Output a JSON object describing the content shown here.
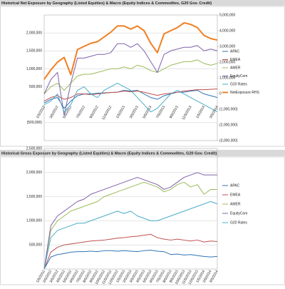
{
  "chart_data": [
    {
      "type": "line",
      "title": "Historical Net Exposure by Geography (Listed Equities) & Macro (Equity Indices & Commodites, G20 Gov. Credit)",
      "categories": [
        "1/5/2012",
        null,
        "3/5/2012",
        null,
        "5/5/2012",
        null,
        "7/5/2012",
        null,
        "9/5/2012",
        null,
        "11/5/2012",
        null,
        "1/5/2013",
        null,
        "3/5/2013",
        null,
        "5/5/2013",
        null,
        "7/5/2013",
        null,
        "9/5/2013",
        null,
        "11/5/2013",
        null,
        "1/5/2014",
        null,
        "3/5/2014"
      ],
      "ylim": [
        -1000000,
        2500000
      ],
      "yticks": [
        {
          "value": -500000,
          "label": "(500,000)"
        },
        {
          "value": 500000,
          "label": "500,000"
        },
        {
          "value": 1000000,
          "label": "1,000,000"
        },
        {
          "value": 1500000,
          "label": "1,500,000"
        },
        {
          "value": 2000000,
          "label": "2,000,000"
        }
      ],
      "y2lim": [
        -3000000,
        5000000
      ],
      "y2ticks": [
        {
          "value": -3000000,
          "label": "(3,000,000)"
        },
        {
          "value": -2000000,
          "label": "(2,000,000)"
        },
        {
          "value": -1000000,
          "label": "(1,000,000)"
        },
        0,
        {
          "value": 1000000,
          "label": "1,000,000"
        },
        {
          "value": 2000000,
          "label": "2,000,000"
        },
        {
          "value": 3000000,
          "label": "3,000,000"
        },
        {
          "value": 4000000,
          "label": "4,000,000"
        },
        {
          "value": 5000000,
          "label": "5,000,000"
        }
      ],
      "grid": true,
      "series": [
        {
          "name": "APAC",
          "color": "#2e75b6",
          "values": [
            50000,
            150000,
            200000,
            -100000,
            100000,
            250000,
            300000,
            300000,
            320000,
            330000,
            340000,
            350000,
            400000,
            380000,
            400000,
            300000,
            200000,
            150000,
            250000,
            300000,
            350000,
            350000,
            380000,
            400000,
            300000,
            250000,
            200000
          ]
        },
        {
          "name": "EMEA",
          "color": "#c0504d",
          "values": [
            100000,
            200000,
            250000,
            150000,
            200000,
            300000,
            300000,
            280000,
            300000,
            320000,
            340000,
            350000,
            380000,
            360000,
            380000,
            350000,
            300000,
            260000,
            300000,
            320000,
            350000,
            380000,
            400000,
            420000,
            420000,
            430000,
            440000
          ]
        },
        {
          "name": "AMER",
          "color": "#9bbb59",
          "values": [
            300000,
            500000,
            600000,
            400000,
            600000,
            800000,
            850000,
            850000,
            900000,
            950000,
            1000000,
            1000000,
            1050000,
            1000000,
            1100000,
            1050000,
            950000,
            900000,
            1000000,
            1100000,
            1150000,
            1200000,
            1200000,
            1250000,
            1150000,
            1100000,
            1150000
          ]
        },
        {
          "name": "EquityCom",
          "color": "#7f60a8",
          "values": [
            300000,
            700000,
            900000,
            -300000,
            600000,
            1300000,
            1300000,
            1350000,
            1400000,
            1400000,
            1450000,
            1700000,
            1700000,
            1600000,
            1700000,
            1500000,
            1200000,
            900000,
            1400000,
            1500000,
            1550000,
            1600000,
            1600000,
            1650000,
            1500000,
            1550000,
            1500000
          ]
        },
        {
          "name": "G20 Rates",
          "color": "#4bacc6",
          "values": [
            0,
            100000,
            300000,
            -200000,
            0,
            400000,
            500000,
            300000,
            200000,
            400000,
            500000,
            600000,
            500000,
            400000,
            200000,
            0,
            -200000,
            -100000,
            100000,
            300000,
            400000,
            300000,
            200000,
            100000,
            0,
            -100000,
            -200000
          ]
        },
        {
          "name": "NetExposure RHS",
          "color": "#f07f22",
          "axis": "y2",
          "values": [
            900000,
            1500000,
            2000000,
            2300000,
            1200000,
            2800000,
            3000000,
            3200000,
            3300000,
            3600000,
            3900000,
            4300000,
            4300000,
            4100000,
            4300000,
            4000000,
            3200000,
            2600000,
            3800000,
            4000000,
            4200000,
            4500000,
            4400000,
            4200000,
            3700000,
            3500000,
            3400000
          ]
        }
      ]
    },
    {
      "type": "line",
      "title": "Historical Gross Exposure by Geography (Listed Equities) & Macro (Equity Indices & Commodites, G20 Gov. Credit)",
      "categories": [
        "1/5/2012",
        "2/5/2012",
        "3/5/2012",
        "4/5/2012",
        "5/5/2012",
        "6/5/2012",
        "7/5/2012",
        "8/5/2012",
        "9/5/2012",
        "10/5/2012",
        "11/5/2012",
        "12/5/2012",
        "1/5/2013",
        "2/5/2013",
        "3/5/2013",
        "4/5/2013",
        "5/5/2013",
        "6/5/2013",
        "7/5/2013",
        "8/5/2013",
        "9/5/2013",
        "10/5/2013",
        "11/5/2013",
        "12/5/2013",
        "1/5/2014",
        "2/5/2014",
        "3/5/2014"
      ],
      "ylim": [
        0,
        2500000
      ],
      "yticks": [
        {
          "value": 500000,
          "label": "500,000"
        },
        {
          "value": 1000000,
          "label": "1,000,000"
        },
        {
          "value": 1500000,
          "label": "1,500,000"
        },
        {
          "value": 2000000,
          "label": "2,000,000"
        },
        {
          "value": 2500000,
          "label": "2,500,000"
        }
      ],
      "grid": true,
      "series": [
        {
          "name": "APAC",
          "color": "#2e75b6",
          "values": [
            0,
            250000,
            300000,
            320000,
            350000,
            360000,
            360000,
            370000,
            360000,
            380000,
            380000,
            370000,
            380000,
            370000,
            360000,
            380000,
            390000,
            370000,
            360000,
            300000,
            310000,
            290000,
            300000,
            280000,
            260000,
            250000,
            260000
          ]
        },
        {
          "name": "EMEA",
          "color": "#c0504d",
          "values": [
            0,
            350000,
            450000,
            500000,
            520000,
            540000,
            560000,
            580000,
            590000,
            600000,
            620000,
            640000,
            650000,
            670000,
            680000,
            700000,
            720000,
            650000,
            620000,
            600000,
            620000,
            600000,
            580000,
            600000,
            560000,
            580000,
            570000
          ]
        },
        {
          "name": "AMER",
          "color": "#9bbb59",
          "values": [
            0,
            800000,
            1000000,
            1100000,
            1200000,
            1250000,
            1300000,
            1350000,
            1400000,
            1500000,
            1550000,
            1600000,
            1650000,
            1700000,
            1750000,
            1800000,
            1750000,
            1700000,
            1600000,
            1650000,
            1750000,
            1800000,
            1700000,
            1750000,
            1550000,
            1650000,
            1650000
          ]
        },
        {
          "name": "EquityCom",
          "color": "#7f60a8",
          "values": [
            0,
            900000,
            1100000,
            1200000,
            1300000,
            1400000,
            1450000,
            1550000,
            1600000,
            1650000,
            1700000,
            1750000,
            1800000,
            1850000,
            1900000,
            1850000,
            1800000,
            1750000,
            1650000,
            1700000,
            1800000,
            1900000,
            1950000,
            2000000,
            1950000,
            1950000,
            1950000
          ]
        },
        {
          "name": "G20 Rates",
          "color": "#4bacc6",
          "values": [
            0,
            650000,
            800000,
            850000,
            900000,
            950000,
            950000,
            1000000,
            1050000,
            1100000,
            1150000,
            1200000,
            1150000,
            1200000,
            1100000,
            1050000,
            1000000,
            1000000,
            1050000,
            1100000,
            1150000,
            1200000,
            1250000,
            1300000,
            1350000,
            1400000,
            1350000
          ]
        }
      ]
    }
  ]
}
